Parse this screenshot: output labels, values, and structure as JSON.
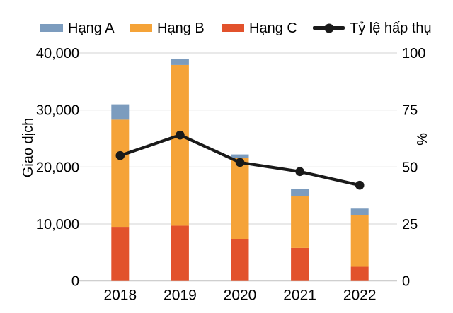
{
  "chart_data": {
    "type": "bar+line",
    "title": "",
    "categories": [
      "2018",
      "2019",
      "2020",
      "2021",
      "2022"
    ],
    "stacked": true,
    "bar_series": [
      {
        "name": "Hạng A",
        "color": "#7C9CBE",
        "values": [
          2700,
          1100,
          600,
          1200,
          1200
        ]
      },
      {
        "name": "Hạng B",
        "color": "#F5A338",
        "values": [
          18800,
          28200,
          14200,
          9100,
          9000
        ]
      },
      {
        "name": "Hạng C",
        "color": "#E2522C",
        "values": [
          9500,
          9700,
          7400,
          5800,
          2500
        ]
      }
    ],
    "stack_order_bottom_to_top": [
      "Hạng C",
      "Hạng B",
      "Hạng A"
    ],
    "line_series": {
      "name": "Tỷ lệ hấp thụ",
      "color": "#1A1A1A",
      "axis": "right",
      "unit": "%",
      "values": [
        55,
        64,
        52,
        48,
        42
      ]
    },
    "left_axis": {
      "label": "Giao dịch",
      "min": 0,
      "max": 40000,
      "ticks": [
        {
          "value": 0,
          "label": "0"
        },
        {
          "value": 10000,
          "label": "10,000"
        },
        {
          "value": 20000,
          "label": "20,000"
        },
        {
          "value": 30000,
          "label": "30,000"
        },
        {
          "value": 40000,
          "label": "40,000"
        }
      ]
    },
    "right_axis": {
      "label": "%",
      "min": 0,
      "max": 100,
      "ticks": [
        {
          "value": 0,
          "label": "0"
        },
        {
          "value": 25,
          "label": "25"
        },
        {
          "value": 50,
          "label": "50"
        },
        {
          "value": 75,
          "label": "75"
        },
        {
          "value": 100,
          "label": "100"
        }
      ]
    },
    "legend_position": "top",
    "gridlines": "horizontal",
    "colors": {
      "gridline": "#DCDCDC",
      "baseline": "#C8C8C8",
      "text": "#000000",
      "background": "#FFFFFF"
    }
  }
}
